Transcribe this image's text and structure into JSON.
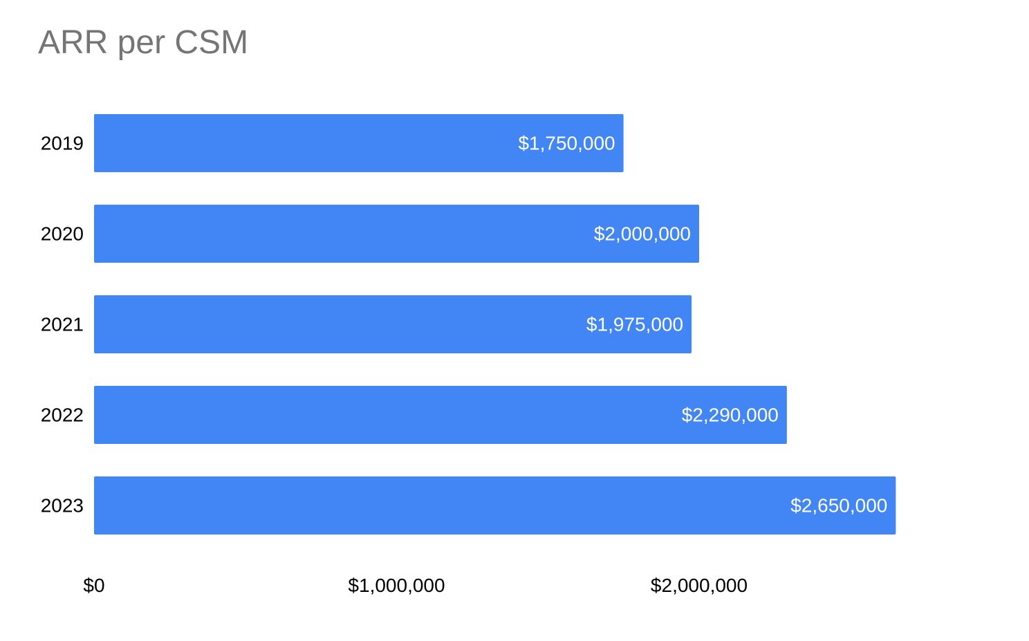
{
  "chart_data": {
    "type": "bar",
    "orientation": "horizontal",
    "title": "ARR per CSM",
    "xlabel": "",
    "ylabel": "",
    "categories": [
      "2019",
      "2020",
      "2021",
      "2022",
      "2023"
    ],
    "values": [
      1750000,
      2000000,
      1975000,
      2290000,
      2650000
    ],
    "data_labels": [
      "$1,750,000",
      "$2,000,000",
      "$1,975,000",
      "$2,290,000",
      "$2,650,000"
    ],
    "x_ticks": [
      0,
      1000000,
      2000000
    ],
    "x_tick_labels": [
      "$0",
      "$1,000,000",
      "$2,000,000"
    ],
    "xlim": [
      0,
      3000000
    ],
    "grid": false,
    "legend": "none",
    "bar_color": "#4285f4",
    "data_label_color": "#ffffff",
    "title_color": "#757575"
  }
}
